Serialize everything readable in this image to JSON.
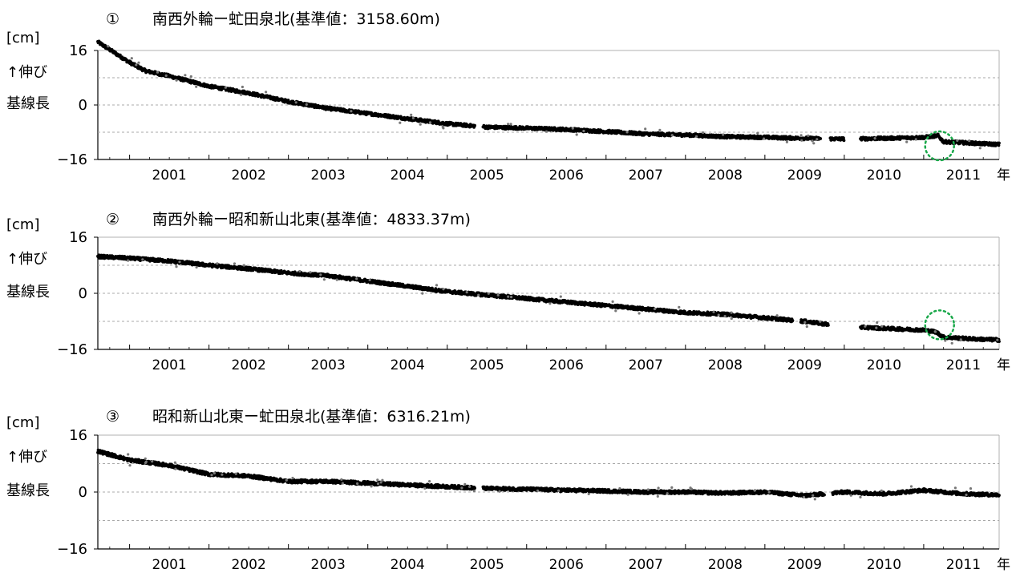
{
  "chart_data": [
    {
      "type": "scatter",
      "number": "①",
      "title": "南西外輪ー虻田泉北(基準値：3158.60m)",
      "unit": "[cm]",
      "ylabel": "↑伸び 基線長",
      "ylabel_lines": [
        "↑伸び",
        "基線長"
      ],
      "xlabel": "年",
      "ylim": [
        -16,
        16
      ],
      "yticks": [
        "16",
        "0",
        "−16"
      ],
      "ytick_values": [
        16,
        0,
        -16
      ],
      "xlim": [
        2000.6,
        2011.95
      ],
      "xtick_labels": [
        "2001",
        "2002",
        "2003",
        "2004",
        "2005",
        "2006",
        "2007",
        "2008",
        "2009",
        "2010",
        "2011"
      ],
      "grid": true,
      "marker_color": "#000000",
      "highlight_circle": {
        "x": 2011.2,
        "y": -12,
        "color": "#1aa84a"
      },
      "gaps": [
        [
          2005.35,
          2005.45
        ],
        [
          2009.7,
          2009.82
        ],
        [
          2010.0,
          2010.2
        ]
      ],
      "series": [
        {
          "x": [
            2000.6,
            2000.8,
            2001.0,
            2001.2,
            2001.5,
            2002.0,
            2002.5,
            2003.0,
            2003.5,
            2004.0,
            2004.5,
            2005.0,
            2005.5,
            2006.0,
            2006.5,
            2007.0,
            2007.5,
            2008.0,
            2008.5,
            2009.0,
            2009.5,
            2010.0,
            2010.5,
            2011.0,
            2011.18,
            2011.25,
            2011.6,
            2011.95
          ],
          "y": [
            18.5,
            15.5,
            12.5,
            10.0,
            8.5,
            5.5,
            3.5,
            1.0,
            -1.0,
            -2.5,
            -4.0,
            -5.5,
            -6.5,
            -6.8,
            -7.2,
            -7.8,
            -8.5,
            -8.8,
            -9.3,
            -9.5,
            -9.8,
            -10.0,
            -9.8,
            -9.5,
            -9.0,
            -10.8,
            -11.2,
            -11.6
          ]
        }
      ]
    },
    {
      "type": "scatter",
      "number": "②",
      "title": "南西外輪ー昭和新山北東(基準値：4833.37m)",
      "unit": "[cm]",
      "ylabel": "↑伸び 基線長",
      "ylabel_lines": [
        "↑伸び",
        "基線長"
      ],
      "xlabel": "年",
      "ylim": [
        -16,
        16
      ],
      "yticks": [
        "16",
        "0",
        "−16"
      ],
      "ytick_values": [
        16,
        0,
        -16
      ],
      "xlim": [
        2000.6,
        2011.95
      ],
      "xtick_labels": [
        "2001",
        "2002",
        "2003",
        "2004",
        "2005",
        "2006",
        "2007",
        "2008",
        "2009",
        "2010",
        "2011"
      ],
      "grid": true,
      "marker_color": "#000000",
      "highlight_circle": {
        "x": 2011.2,
        "y": -9,
        "color": "#1aa84a"
      },
      "gaps": [
        [
          2009.35,
          2009.45
        ],
        [
          2009.8,
          2010.2
        ]
      ],
      "series": [
        {
          "x": [
            2000.6,
            2001.0,
            2001.5,
            2002.0,
            2002.5,
            2003.0,
            2003.5,
            2004.0,
            2004.5,
            2005.0,
            2005.5,
            2006.0,
            2006.5,
            2007.0,
            2007.5,
            2008.0,
            2008.5,
            2009.0,
            2009.5,
            2010.0,
            2010.5,
            2011.0,
            2011.15,
            2011.25,
            2011.6,
            2011.95
          ],
          "y": [
            10.5,
            10.0,
            9.2,
            8.0,
            7.0,
            5.8,
            5.0,
            3.5,
            2.0,
            0.5,
            -0.5,
            -1.5,
            -2.5,
            -3.5,
            -4.5,
            -5.5,
            -6.0,
            -7.0,
            -8.0,
            -9.5,
            -10.0,
            -10.5,
            -11.0,
            -12.5,
            -13.0,
            -13.3
          ]
        }
      ]
    },
    {
      "type": "scatter",
      "number": "③",
      "title": "昭和新山北東ー虻田泉北(基準値：6316.21m)",
      "unit": "[cm]",
      "ylabel": "↑伸び 基線長",
      "ylabel_lines": [
        "↑伸び",
        "基線長"
      ],
      "xlabel": "年",
      "ylim": [
        -16,
        16
      ],
      "yticks": [
        "16",
        "0",
        "−16"
      ],
      "ytick_values": [
        16,
        0,
        -16
      ],
      "xlim": [
        2000.6,
        2011.95
      ],
      "xtick_labels": [
        "2001",
        "2002",
        "2003",
        "2004",
        "2005",
        "2006",
        "2007",
        "2008",
        "2009",
        "2010",
        "2011"
      ],
      "grid": true,
      "marker_color": "#000000",
      "gaps": [
        [
          2005.35,
          2005.45
        ],
        [
          2009.75,
          2009.85
        ]
      ],
      "series": [
        {
          "x": [
            2000.6,
            2001.0,
            2001.5,
            2002.0,
            2002.5,
            2003.0,
            2003.5,
            2004.0,
            2004.5,
            2005.0,
            2005.5,
            2006.0,
            2006.5,
            2007.0,
            2007.5,
            2008.0,
            2008.5,
            2009.0,
            2009.5,
            2010.0,
            2010.5,
            2011.0,
            2011.5,
            2011.95
          ],
          "y": [
            11.5,
            9.0,
            7.5,
            5.0,
            4.5,
            3.0,
            3.0,
            2.5,
            2.0,
            1.5,
            1.0,
            0.8,
            0.5,
            0.3,
            0.0,
            0.0,
            -0.3,
            0.0,
            -1.0,
            0.0,
            -0.5,
            0.5,
            -0.5,
            -0.8
          ]
        }
      ]
    }
  ]
}
